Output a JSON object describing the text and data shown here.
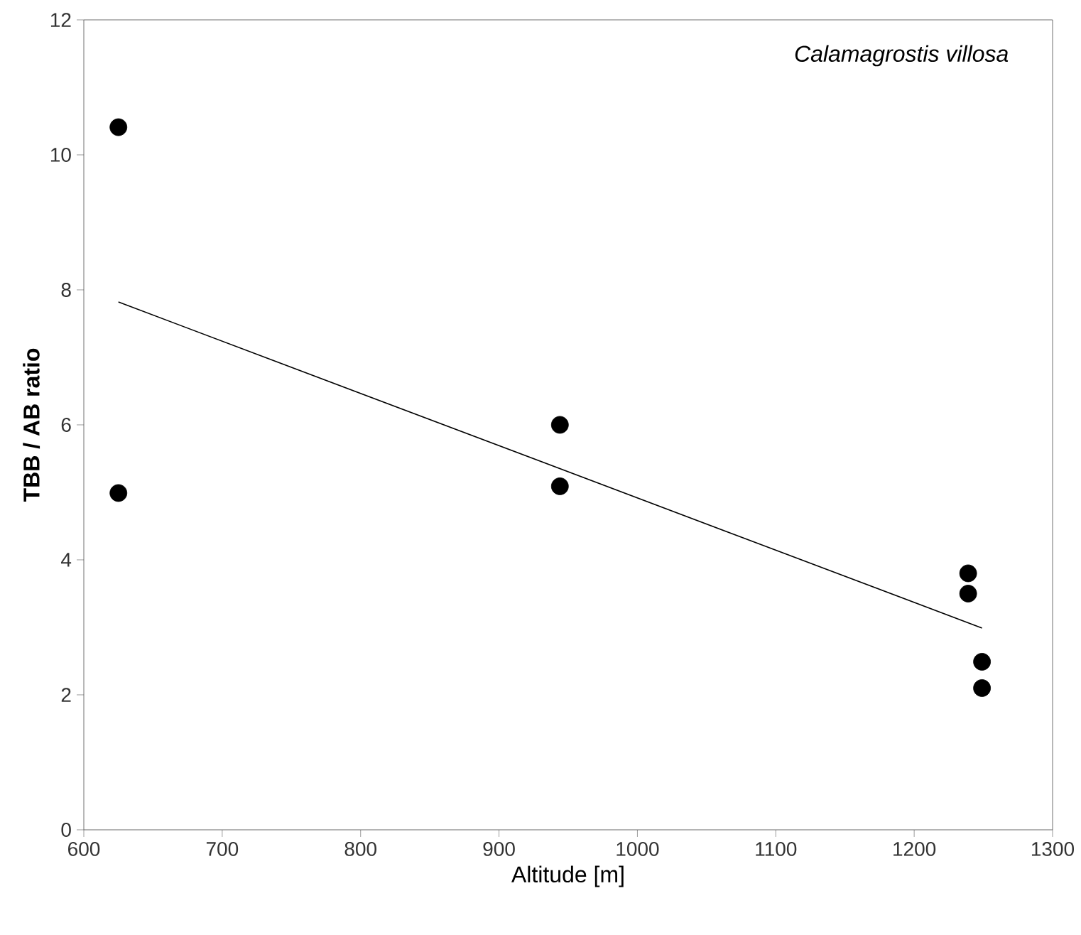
{
  "chart_data": {
    "type": "scatter",
    "xlabel": "Altitude [m]",
    "ylabel": "TBB / AB ratio",
    "annotations": [
      "Calamagrostis villosa"
    ],
    "xlim": [
      600,
      1300
    ],
    "xticks": [
      600,
      700,
      800,
      900,
      1000,
      1100,
      1200,
      1300
    ],
    "ylim": [
      0,
      12
    ],
    "yticks": [
      0,
      2,
      4,
      6,
      8,
      10,
      12
    ],
    "grid": false,
    "series": [
      {
        "color": "#000000",
        "marker": "circle",
        "x": [
          625,
          625,
          944,
          944,
          1239,
          1239,
          1249,
          1249
        ],
        "values": [
          10.41,
          4.99,
          6.0,
          5.09,
          3.8,
          3.5,
          2.49,
          2.1
        ]
      },
      {
        "type": "line",
        "color": "#000000",
        "marker": "none",
        "line_style": "solid",
        "x": [
          625,
          1249
        ],
        "values": [
          7.82,
          2.99
        ]
      }
    ]
  }
}
